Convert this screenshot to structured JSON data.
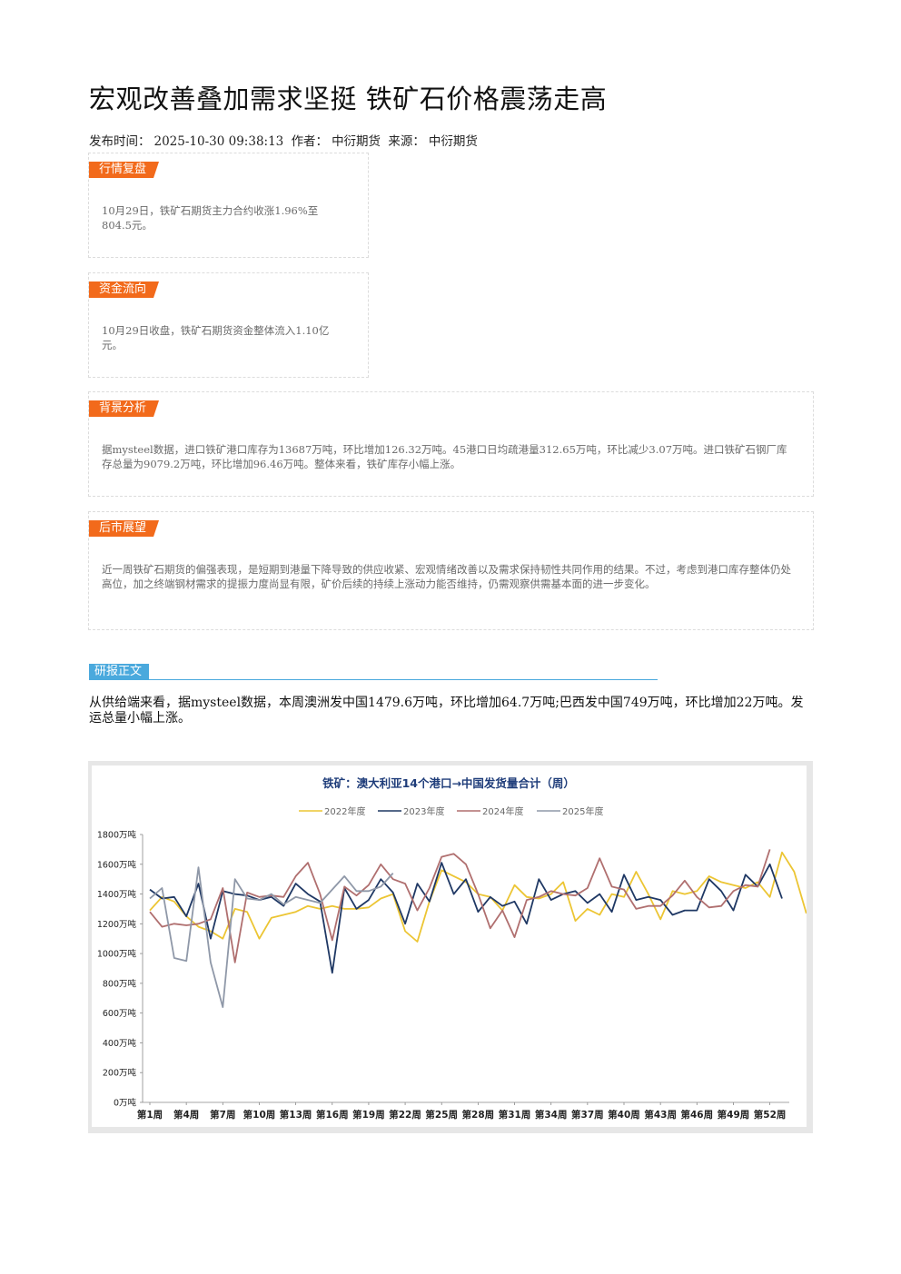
{
  "article": {
    "title": "宏观改善叠加需求坚挺 铁矿石价格震荡走高",
    "publish_label": "发布时间：",
    "publish_time": "2025-10-30 09:38:13",
    "author_label": "作者：",
    "author": "中衍期货",
    "source_label": "来源：",
    "source": "中衍期货"
  },
  "sections": [
    {
      "tag": "行情复盘",
      "text": "10月29日，铁矿石期货主力合约收涨1.96%至804.5元。"
    },
    {
      "tag": "资金流向",
      "text": "10月29日收盘，铁矿石期货资金整体流入1.10亿元。"
    },
    {
      "tag": "背景分析",
      "text": "据mysteel数据，进口铁矿港口库存为13687万吨，环比增加126.32万吨。45港口日均疏港量312.65万吨，环比减少3.07万吨。进口铁矿石钢厂库存总量为9079.2万吨，环比增加96.46万吨。整体来看，铁矿库存小幅上涨。"
    },
    {
      "tag": "后市展望",
      "text": "近一周铁矿石期货的偏强表现，是短期到港量下降导致的供应收紧、宏观情绪改善以及需求保持韧性共同作用的结果。不过，考虑到港口库存整体仍处高位，加之终端钢材需求的提振力度尚显有限，矿价后续的持续上涨动力能否维持，仍需观察供需基本面的进一步变化。"
    }
  ],
  "report": {
    "tag": "研报正文",
    "paragraph": "从供给端来看，据mysteel数据，本周澳洲发中国1479.6万吨，环比增加64.7万吨;巴西发中国749万吨，环比增加22万吨。发运总量小幅上涨。"
  },
  "chart_data": {
    "type": "line",
    "title": "铁矿：澳大利亚14个港口→中国发货量合计（周）",
    "ylim": [
      0,
      1800
    ],
    "y_ticks": [
      "0万吨",
      "200万吨",
      "400万吨",
      "600万吨",
      "800万吨",
      "1000万吨",
      "1200万吨",
      "1400万吨",
      "1600万吨",
      "1800万吨"
    ],
    "x_ticks": [
      "第1周",
      "第4周",
      "第7周",
      "第10周",
      "第13周",
      "第16周",
      "第19周",
      "第22周",
      "第25周",
      "第28周",
      "第31周",
      "第34周",
      "第37周",
      "第40周",
      "第43周",
      "第46周",
      "第49周",
      "第52周"
    ],
    "grid": false,
    "legend_position": "top",
    "series": [
      {
        "name": "2022年度",
        "color": "#ecc533",
        "values": [
          1290,
          1380,
          1350,
          1250,
          1180,
          1150,
          1100,
          1300,
          1280,
          1100,
          1240,
          1260,
          1280,
          1320,
          1300,
          1320,
          1300,
          1300,
          1310,
          1370,
          1400,
          1150,
          1080,
          1350,
          1560,
          1520,
          1480,
          1400,
          1380,
          1290,
          1460,
          1380,
          1370,
          1400,
          1480,
          1220,
          1300,
          1260,
          1400,
          1380,
          1550,
          1400,
          1230,
          1420,
          1400,
          1420,
          1520,
          1480,
          1460,
          1440,
          1480,
          1380,
          1680,
          1550,
          1270
        ]
      },
      {
        "name": "2023年度",
        "color": "#1f3864",
        "values": [
          1430,
          1370,
          1380,
          1250,
          1470,
          1100,
          1420,
          1400,
          1390,
          1360,
          1380,
          1320,
          1470,
          1400,
          1350,
          870,
          1440,
          1300,
          1360,
          1500,
          1410,
          1200,
          1470,
          1350,
          1610,
          1400,
          1500,
          1280,
          1380,
          1320,
          1350,
          1200,
          1500,
          1360,
          1400,
          1420,
          1340,
          1400,
          1280,
          1530,
          1360,
          1380,
          1360,
          1260,
          1290,
          1290,
          1500,
          1420,
          1290,
          1530,
          1450,
          1600,
          1370
        ]
      },
      {
        "name": "2024年度",
        "color": "#b06f6f",
        "values": [
          1280,
          1180,
          1200,
          1190,
          1200,
          1230,
          1440,
          940,
          1410,
          1380,
          1390,
          1380,
          1520,
          1610,
          1400,
          1090,
          1450,
          1390,
          1460,
          1600,
          1500,
          1470,
          1290,
          1440,
          1650,
          1670,
          1600,
          1400,
          1170,
          1290,
          1110,
          1360,
          1380,
          1420,
          1400,
          1390,
          1440,
          1640,
          1450,
          1430,
          1300,
          1320,
          1320,
          1390,
          1490,
          1380,
          1310,
          1320,
          1420,
          1460,
          1450,
          1700
        ]
      },
      {
        "name": "2025年度",
        "color": "#8f98a8",
        "values": [
          1370,
          1440,
          970,
          950,
          1580,
          940,
          640,
          1500,
          1370,
          1360,
          1400,
          1330,
          1380,
          1360,
          1340,
          1430,
          1520,
          1420,
          1420,
          1450,
          1540
        ]
      }
    ]
  }
}
